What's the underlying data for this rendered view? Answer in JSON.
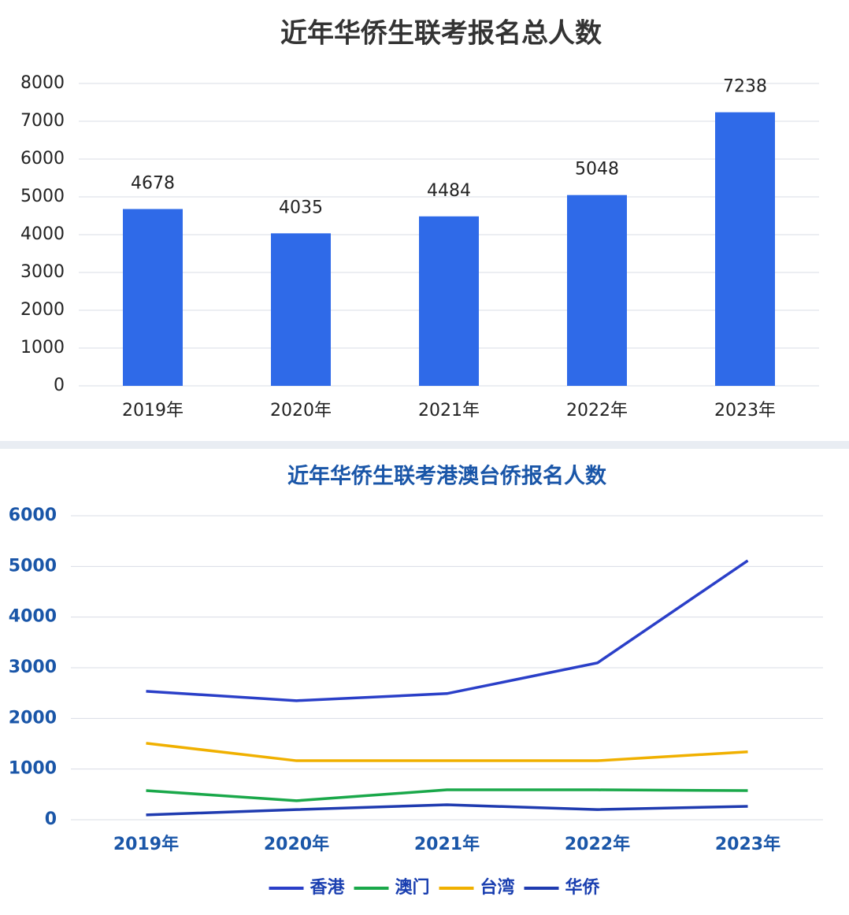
{
  "chart_data": [
    {
      "type": "bar",
      "title": "近年华侨生联考报名总人数",
      "categories": [
        "2019年",
        "2020年",
        "2021年",
        "2022年",
        "2023年"
      ],
      "values": [
        4678,
        4035,
        4484,
        5048,
        7238
      ],
      "color": "#2f6ae8",
      "ylim": [
        0,
        8000
      ],
      "yticks": [
        0,
        1000,
        2000,
        3000,
        4000,
        5000,
        6000,
        7000,
        8000
      ],
      "grid": true
    },
    {
      "type": "line",
      "title": "近年华侨生联考港澳台侨报名人数",
      "categories": [
        "2019年",
        "2020年",
        "2021年",
        "2022年",
        "2023年"
      ],
      "series": [
        {
          "name": "香港",
          "color": "#2a3fc8",
          "values": [
            2535,
            2350,
            2490,
            3095,
            5115
          ]
        },
        {
          "name": "澳门",
          "color": "#1aa84a",
          "values": [
            575,
            375,
            590,
            590,
            575
          ]
        },
        {
          "name": "台湾",
          "color": "#f0b000",
          "values": [
            1510,
            1165,
            1165,
            1165,
            1340
          ]
        },
        {
          "name": "华侨",
          "color": "#1f3bb0",
          "values": [
            95,
            200,
            295,
            200,
            265
          ]
        }
      ],
      "ylim": [
        0,
        6000
      ],
      "yticks": [
        0,
        1000,
        2000,
        3000,
        4000,
        5000,
        6000
      ],
      "grid": true,
      "legend": "bottom"
    }
  ]
}
